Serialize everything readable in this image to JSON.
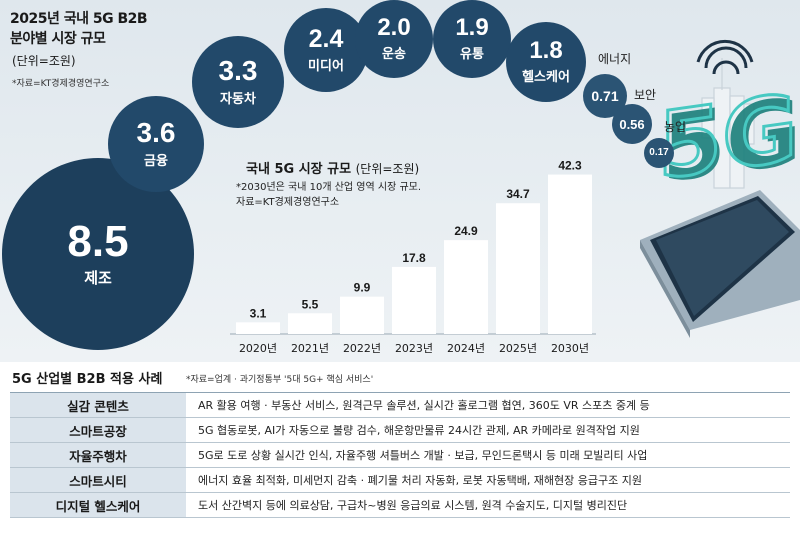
{
  "main_title_line1": "2025년 국내 5G B2B",
  "main_title_line2": "분야별 시장 규모",
  "unit": "(단위=조원)",
  "source": "*자료=KT경제경영연구소",
  "bubbles": [
    {
      "label": "제조",
      "value": "8.5"
    },
    {
      "label": "금융",
      "value": "3.6"
    },
    {
      "label": "자동차",
      "value": "3.3"
    },
    {
      "label": "미디어",
      "value": "2.4"
    },
    {
      "label": "운송",
      "value": "2.0"
    },
    {
      "label": "유통",
      "value": "1.9"
    },
    {
      "label": "헬스케어",
      "value": "1.8"
    },
    {
      "label": "에너지",
      "value": "0.71"
    },
    {
      "label": "보안",
      "value": "0.56"
    },
    {
      "label": "농업",
      "value": "0.17"
    }
  ],
  "chart_data": {
    "type": "bar",
    "title": "국내 5G 시장 규모",
    "unit": "(단위=조원)",
    "note1": "*2030년은 국내 10개 산업 영역 시장 규모.",
    "note2": "자료=KT경제경영연구소",
    "categories": [
      "2020년",
      "2021년",
      "2022년",
      "2023년",
      "2024년",
      "2025년",
      "2030년"
    ],
    "values": [
      3.1,
      5.5,
      9.9,
      17.8,
      24.9,
      34.7,
      42.3
    ],
    "value_labels": [
      "3.1",
      "5.5",
      "9.9",
      "17.8",
      "24.9",
      "34.7",
      "42.3"
    ],
    "ylim": [
      0,
      45
    ]
  },
  "section2": {
    "title": "5G 산업별 B2B 적용 사례",
    "source": "*자료=업계 · 과기정통부 '5대 5G+ 핵심 서비스'",
    "rows": [
      {
        "name": "실감 콘텐츠",
        "desc": "AR 활용 여행 · 부동산 서비스, 원격근무 솔루션, 실시간 홀로그램 협연, 360도 VR 스포츠 중계 등"
      },
      {
        "name": "스마트공장",
        "desc": "5G 협동로봇, AI가 자동으로 불량 검수, 해운항만물류 24시간 관제, AR 카메라로 원격작업 지원"
      },
      {
        "name": "자율주행차",
        "desc": "5G로 도로 상황 실시간 인식, 자율주행 셔틀버스 개발 · 보급, 무인드론택시 등 미래 모빌리티 사업"
      },
      {
        "name": "스마트시티",
        "desc": "에너지 효율 최적화, 미세먼지 감축 · 폐기물 처리 자동화, 로봇 자동택배, 재해현장 응급구조 지원"
      },
      {
        "name": "디지털 헬스케어",
        "desc": "도서 산간벽지 등에 의료상담, 구급차~병원 응급의료 시스템, 원격 수술지도, 디지털 병리진단"
      }
    ]
  },
  "colors": {
    "bubble_dark": "#1d3f5c",
    "bubble_mid": "#24506f",
    "bar": "#ffffff",
    "teal": "#2aa6a0"
  }
}
